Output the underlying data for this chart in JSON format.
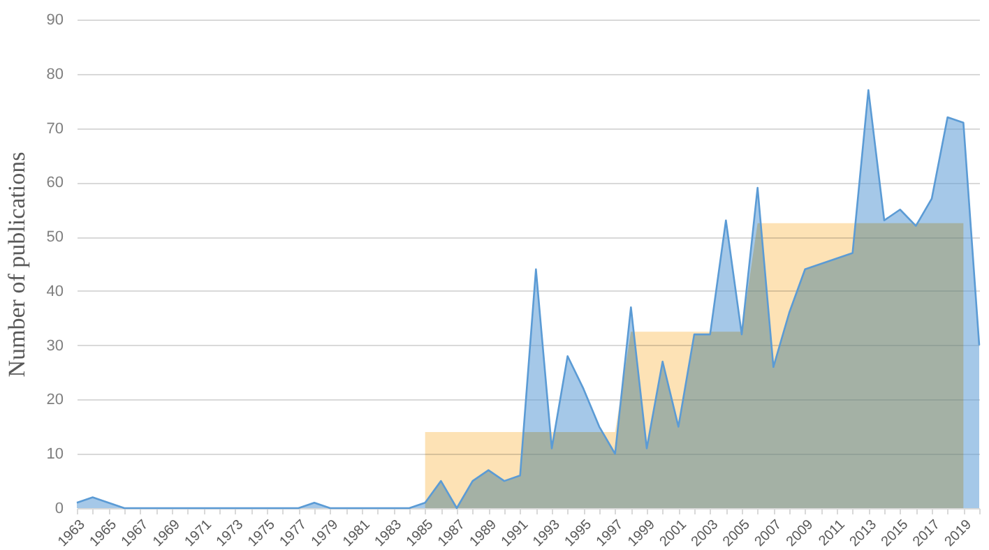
{
  "chart_data": {
    "type": "area",
    "ylabel": "Number of publications",
    "categories": [
      "1963",
      null,
      "1965",
      null,
      "1967",
      null,
      "1969",
      null,
      "1971",
      null,
      "1973",
      null,
      "1975",
      null,
      "1977",
      null,
      "1979",
      null,
      "1981",
      null,
      "1983",
      null,
      "1985",
      null,
      "1987",
      null,
      "1989",
      null,
      "1991",
      null,
      "1993",
      null,
      "1995",
      null,
      "1997",
      null,
      "1999",
      null,
      "2001",
      null,
      "2003",
      null,
      "2005",
      null,
      "2007",
      null,
      "2009",
      null,
      "2011",
      null,
      "2013",
      null,
      "2015",
      null,
      "2017",
      null,
      "2019",
      null
    ],
    "series": [
      {
        "color": "#5b9bd5",
        "values": [
          1,
          2,
          1,
          0,
          0,
          0,
          0,
          0,
          0,
          0,
          0,
          0,
          0,
          0,
          0,
          1,
          0,
          0,
          0,
          0,
          0,
          0,
          1,
          5,
          0,
          5,
          7,
          5,
          6,
          44,
          11,
          28,
          22,
          15,
          10,
          37,
          11,
          27,
          15,
          32,
          32,
          53,
          32,
          59,
          26,
          36,
          44,
          45,
          46,
          47,
          77,
          53,
          55,
          52,
          57,
          72,
          71,
          30
        ]
      },
      {
        "type": "area",
        "color": "#fde2b5",
        "values": [
          null,
          null,
          null,
          null,
          null,
          null,
          null,
          null,
          null,
          null,
          null,
          null,
          null,
          null,
          null,
          null,
          null,
          null,
          null,
          null,
          null,
          null,
          14,
          14,
          14,
          14,
          14,
          14,
          14,
          14,
          14,
          14,
          14,
          14,
          14,
          32.5,
          32.5,
          32.5,
          32.5,
          32.5,
          32.5,
          32.5,
          32.5,
          52.5,
          52.5,
          52.5,
          52.5,
          52.5,
          52.5,
          52.5,
          52.5,
          52.5,
          52.5,
          52.5,
          52.5,
          52.5,
          52.5,
          null
        ]
      }
    ],
    "ylim": [
      0,
      90
    ],
    "yticks": [
      0,
      10,
      20,
      30,
      40,
      50,
      60,
      70,
      80,
      90
    ],
    "grid": "y"
  }
}
